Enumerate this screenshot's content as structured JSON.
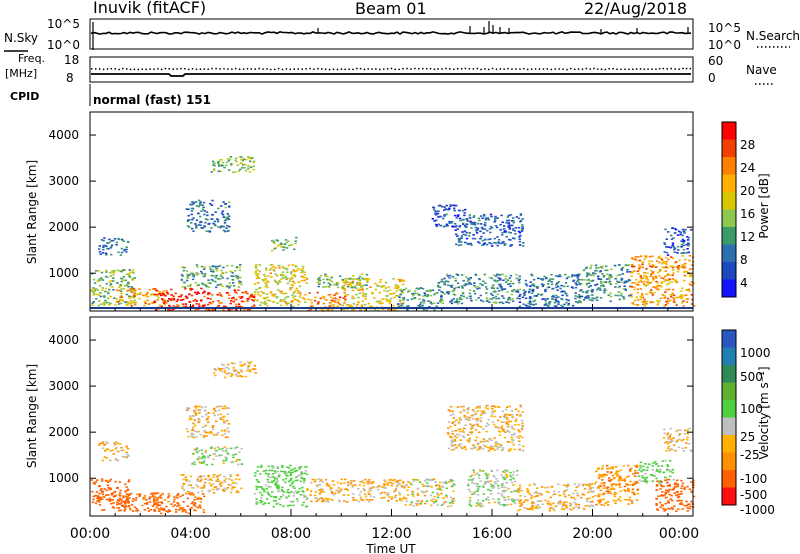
{
  "header": {
    "station": "Inuvik (fitACF)",
    "beam": "Beam 01",
    "date": "22/Aug/2018"
  },
  "noise_panel": {
    "left_label": "N.Sky",
    "right_label": "N.Search",
    "left_ticks": [
      "10^5",
      "10^0"
    ],
    "right_ticks": [
      "10^5",
      "10^0"
    ]
  },
  "freq_panel": {
    "left_label_line1": "Freq.",
    "left_label_line2": "[MHz]",
    "right_label": "Nave",
    "left_ticks": [
      "18",
      "8"
    ],
    "right_ticks": [
      "60",
      "0"
    ]
  },
  "cpid_panel": {
    "label": "CPID",
    "mode": "normal (fast) 151"
  },
  "x_axis": {
    "title": "Time UT",
    "ticks": [
      "00:00",
      "04:00",
      "08:00",
      "12:00",
      "16:00",
      "20:00",
      "00:00"
    ]
  },
  "colorbars": {
    "power": {
      "label": "Power [dB]",
      "ticks": [
        "28",
        "24",
        "20",
        "16",
        "12",
        "8",
        "4"
      ],
      "colors": [
        "#ff0000",
        "#f04000",
        "#ff8000",
        "#ffb000",
        "#d8c800",
        "#8cc850",
        "#3a9a6a",
        "#2e6fb0",
        "#1c48c0",
        "#1414ff"
      ]
    },
    "velocity": {
      "label": "Velocity [m s⁻¹]",
      "ticks": [
        "1000",
        "500",
        "100",
        "25",
        "-25",
        "-100",
        "-500",
        "-1000"
      ],
      "colors": [
        "#2a56c4",
        "#1f7fb0",
        "#2e8b57",
        "#60b030",
        "#50d040",
        "#bebebe",
        "#ffb000",
        "#ff9000",
        "#ff6000",
        "#ff1010"
      ]
    }
  },
  "chart_data": [
    {
      "type": "heatmap",
      "title": "Power",
      "ylabel": "Slant Range [km]",
      "xlabel": "Time UT",
      "ylim": [
        180,
        4500
      ],
      "yticks": [
        1000,
        2000,
        3000,
        4000
      ],
      "xlim_hours": [
        0,
        24
      ],
      "colorbar": {
        "label": "Power [dB]",
        "range": [
          0,
          32
        ]
      },
      "regions": [
        {
          "t": [
            0.0,
            1.8
          ],
          "r": [
            300,
            1100
          ],
          "v": 14
        },
        {
          "t": [
            0.3,
            1.5
          ],
          "r": [
            1400,
            1800
          ],
          "v": 8
        },
        {
          "t": [
            1.0,
            3.0
          ],
          "r": [
            300,
            700
          ],
          "v": 22
        },
        {
          "t": [
            2.5,
            4.5
          ],
          "r": [
            200,
            700
          ],
          "v": 30
        },
        {
          "t": [
            4.5,
            6.5
          ],
          "r": [
            200,
            650
          ],
          "v": 28
        },
        {
          "t": [
            3.6,
            6.0
          ],
          "r": [
            700,
            1200
          ],
          "v": 12
        },
        {
          "t": [
            3.8,
            5.5
          ],
          "r": [
            1900,
            2600
          ],
          "v": 8
        },
        {
          "t": [
            4.8,
            6.6
          ],
          "r": [
            3200,
            3550
          ],
          "v": 14
        },
        {
          "t": [
            6.5,
            8.6
          ],
          "r": [
            300,
            1200
          ],
          "v": 18
        },
        {
          "t": [
            7.2,
            8.2
          ],
          "r": [
            1500,
            1800
          ],
          "v": 14
        },
        {
          "t": [
            8.6,
            10.2
          ],
          "r": [
            200,
            600
          ],
          "v": 24
        },
        {
          "t": [
            9.0,
            11.0
          ],
          "r": [
            700,
            1000
          ],
          "v": 14
        },
        {
          "t": [
            10.0,
            12.5
          ],
          "r": [
            200,
            900
          ],
          "v": 18
        },
        {
          "t": [
            12.2,
            13.8
          ],
          "r": [
            200,
            700
          ],
          "v": 10
        },
        {
          "t": [
            13.6,
            15.0
          ],
          "r": [
            2000,
            2500
          ],
          "v": 6
        },
        {
          "t": [
            14.5,
            17.2
          ],
          "r": [
            1600,
            2300
          ],
          "v": 6
        },
        {
          "t": [
            13.8,
            17.0
          ],
          "r": [
            350,
            1000
          ],
          "v": 10
        },
        {
          "t": [
            17.0,
            19.5
          ],
          "r": [
            250,
            1000
          ],
          "v": 8
        },
        {
          "t": [
            19.5,
            21.5
          ],
          "r": [
            400,
            1200
          ],
          "v": 10
        },
        {
          "t": [
            21.5,
            24.0
          ],
          "r": [
            300,
            1400
          ],
          "v": 22
        },
        {
          "t": [
            22.8,
            23.9
          ],
          "r": [
            1400,
            2000
          ],
          "v": 6
        }
      ]
    },
    {
      "type": "heatmap",
      "title": "Velocity",
      "ylabel": "Slant Range [km]",
      "xlabel": "Time UT",
      "ylim": [
        180,
        4500
      ],
      "yticks": [
        1000,
        2000,
        3000,
        4000
      ],
      "xlim_hours": [
        0,
        24
      ],
      "colorbar": {
        "label": "Velocity [m s-1]",
        "range": [
          -1000,
          1000
        ]
      },
      "regions": [
        {
          "t": [
            0.0,
            1.6
          ],
          "r": [
            300,
            1000
          ],
          "v": -200
        },
        {
          "t": [
            0.3,
            1.5
          ],
          "r": [
            1400,
            1800
          ],
          "v": 0
        },
        {
          "t": [
            1.0,
            3.0
          ],
          "r": [
            300,
            700
          ],
          "v": -150
        },
        {
          "t": [
            2.5,
            4.5
          ],
          "r": [
            250,
            700
          ],
          "v": -150
        },
        {
          "t": [
            3.6,
            6.0
          ],
          "r": [
            700,
            1100
          ],
          "v": 0
        },
        {
          "t": [
            4.0,
            6.0
          ],
          "r": [
            1300,
            1700
          ],
          "v": 80
        },
        {
          "t": [
            3.8,
            5.5
          ],
          "r": [
            1900,
            2600
          ],
          "v": 0
        },
        {
          "t": [
            4.8,
            6.6
          ],
          "r": [
            3200,
            3550
          ],
          "v": 0
        },
        {
          "t": [
            6.5,
            8.6
          ],
          "r": [
            400,
            1300
          ],
          "v": 150
        },
        {
          "t": [
            8.6,
            12.5
          ],
          "r": [
            500,
            1000
          ],
          "v": 0
        },
        {
          "t": [
            12.5,
            14.5
          ],
          "r": [
            400,
            1000
          ],
          "v": 40
        },
        {
          "t": [
            14.2,
            17.2
          ],
          "r": [
            1600,
            2600
          ],
          "v": 0
        },
        {
          "t": [
            15.0,
            17.0
          ],
          "r": [
            400,
            1200
          ],
          "v": 80
        },
        {
          "t": [
            17.0,
            20.0
          ],
          "r": [
            300,
            900
          ],
          "v": 0
        },
        {
          "t": [
            20.0,
            21.8
          ],
          "r": [
            400,
            1300
          ],
          "v": -60
        },
        {
          "t": [
            21.8,
            23.2
          ],
          "r": [
            900,
            1400
          ],
          "v": 150
        },
        {
          "t": [
            22.5,
            24.0
          ],
          "r": [
            300,
            1000
          ],
          "v": -300
        },
        {
          "t": [
            22.8,
            23.9
          ],
          "r": [
            1600,
            2100
          ],
          "v": 0
        }
      ]
    }
  ]
}
